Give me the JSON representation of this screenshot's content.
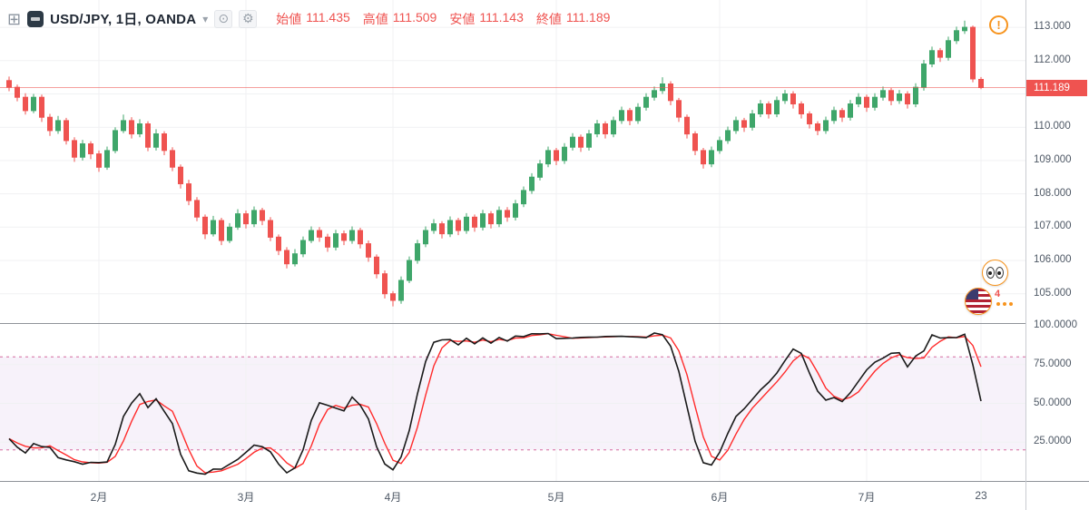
{
  "header": {
    "add_icon": "⊞",
    "symbol_title": "USD/JPY, 1日, OANDA",
    "caret": "▾",
    "eye_icon": "⊙",
    "gear_icon": "⚙",
    "ohlc_legend": [
      {
        "label": "始値",
        "value": "111.435"
      },
      {
        "label": "高値",
        "value": "111.509"
      },
      {
        "label": "安値",
        "value": "111.143"
      },
      {
        "label": "終値",
        "value": "111.189"
      }
    ],
    "alert_icon": "!"
  },
  "reactions": {
    "count": "4"
  },
  "colors": {
    "up": "#3fa66a",
    "down": "#ef5350",
    "red": "#ef5350",
    "k_line": "#1a1a1a",
    "d_line": "#ff2b2b",
    "band_line": "#d66a9e",
    "band_fill": "rgba(170,115,200,0.09)",
    "grid": "#f0f1f3",
    "alert_orange": "#f7941e"
  },
  "chart_data": {
    "type": "candlestick",
    "title": "USD/JPY, 1日, OANDA",
    "symbol": "USD/JPY",
    "interval": "1日",
    "exchange": "OANDA",
    "last_price": 111.189,
    "price_line": {
      "value": 111.189,
      "label": "111.189"
    },
    "ylim": [
      104.1,
      113.8
    ],
    "price_axis": [
      {
        "value": 113,
        "label": "113.000"
      },
      {
        "value": 112,
        "label": "112.000"
      },
      {
        "value": 111,
        "label": "111.000"
      },
      {
        "value": 110,
        "label": "110.000"
      },
      {
        "value": 109,
        "label": "109.000"
      },
      {
        "value": 108,
        "label": "108.000"
      },
      {
        "value": 107,
        "label": "107.000"
      },
      {
        "value": 106,
        "label": "106.000"
      },
      {
        "value": 105,
        "label": "105.000"
      }
    ],
    "time_axis": [
      {
        "index": 11,
        "label": "2月"
      },
      {
        "index": 29,
        "label": "3月"
      },
      {
        "index": 47,
        "label": "4月"
      },
      {
        "index": 67,
        "label": "5月"
      },
      {
        "index": 87,
        "label": "6月"
      },
      {
        "index": 105,
        "label": "7月"
      },
      {
        "index": 119,
        "label": "23"
      }
    ],
    "ohlc": [
      [
        111.4,
        111.52,
        111.08,
        111.2
      ],
      [
        111.2,
        111.28,
        110.78,
        110.9
      ],
      [
        110.9,
        111.02,
        110.38,
        110.5
      ],
      [
        110.5,
        111.0,
        110.42,
        110.9
      ],
      [
        110.9,
        110.98,
        110.16,
        110.3
      ],
      [
        110.3,
        110.4,
        109.74,
        109.9
      ],
      [
        109.9,
        110.34,
        109.8,
        110.2
      ],
      [
        110.2,
        110.28,
        109.48,
        109.6
      ],
      [
        109.6,
        109.7,
        108.96,
        109.1
      ],
      [
        109.1,
        109.62,
        109.0,
        109.5
      ],
      [
        109.5,
        109.58,
        109.04,
        109.2
      ],
      [
        109.2,
        109.3,
        108.66,
        108.8
      ],
      [
        108.8,
        109.42,
        108.72,
        109.3
      ],
      [
        109.3,
        110.0,
        109.22,
        109.9
      ],
      [
        109.9,
        110.38,
        109.82,
        110.2
      ],
      [
        110.2,
        110.3,
        109.66,
        109.8
      ],
      [
        109.8,
        110.24,
        109.7,
        110.1
      ],
      [
        110.1,
        110.18,
        109.28,
        109.4
      ],
      [
        109.4,
        109.94,
        109.3,
        109.8
      ],
      [
        109.8,
        109.88,
        109.16,
        109.3
      ],
      [
        109.3,
        109.4,
        108.68,
        108.8
      ],
      [
        108.8,
        108.88,
        108.16,
        108.3
      ],
      [
        108.3,
        108.42,
        107.66,
        107.8
      ],
      [
        107.8,
        107.9,
        107.18,
        107.3
      ],
      [
        107.3,
        107.38,
        106.64,
        106.8
      ],
      [
        106.8,
        107.34,
        106.72,
        107.2
      ],
      [
        107.2,
        107.28,
        106.46,
        106.6
      ],
      [
        106.6,
        107.12,
        106.52,
        107.0
      ],
      [
        107.0,
        107.54,
        106.92,
        107.4
      ],
      [
        107.4,
        107.5,
        106.96,
        107.1
      ],
      [
        107.1,
        107.62,
        107.0,
        107.5
      ],
      [
        107.5,
        107.58,
        107.06,
        107.2
      ],
      [
        107.2,
        107.3,
        106.58,
        106.7
      ],
      [
        106.7,
        106.78,
        106.16,
        106.3
      ],
      [
        106.3,
        106.4,
        105.76,
        105.9
      ],
      [
        105.9,
        106.34,
        105.82,
        106.2
      ],
      [
        106.2,
        106.72,
        106.1,
        106.6
      ],
      [
        106.6,
        107.02,
        106.52,
        106.9
      ],
      [
        106.9,
        107.0,
        106.56,
        106.7
      ],
      [
        106.7,
        106.8,
        106.26,
        106.4
      ],
      [
        106.4,
        106.92,
        106.3,
        106.8
      ],
      [
        106.8,
        106.9,
        106.46,
        106.6
      ],
      [
        106.6,
        107.02,
        106.5,
        106.9
      ],
      [
        106.9,
        106.98,
        106.36,
        106.5
      ],
      [
        106.5,
        106.6,
        105.96,
        106.1
      ],
      [
        106.1,
        106.18,
        105.46,
        105.6
      ],
      [
        105.6,
        105.7,
        104.86,
        105.0
      ],
      [
        105.0,
        105.08,
        104.62,
        104.8
      ],
      [
        104.8,
        105.52,
        104.7,
        105.4
      ],
      [
        105.4,
        106.12,
        105.32,
        106.0
      ],
      [
        106.0,
        106.62,
        105.9,
        106.5
      ],
      [
        106.5,
        107.02,
        106.4,
        106.9
      ],
      [
        106.9,
        107.24,
        106.8,
        107.1
      ],
      [
        107.1,
        107.18,
        106.66,
        106.8
      ],
      [
        106.8,
        107.32,
        106.7,
        107.2
      ],
      [
        107.2,
        107.28,
        106.76,
        106.9
      ],
      [
        106.9,
        107.42,
        106.8,
        107.3
      ],
      [
        107.3,
        107.38,
        106.86,
        107.0
      ],
      [
        107.0,
        107.52,
        106.9,
        107.4
      ],
      [
        107.4,
        107.48,
        106.96,
        107.1
      ],
      [
        107.1,
        107.62,
        107.0,
        107.5
      ],
      [
        107.5,
        107.6,
        107.16,
        107.3
      ],
      [
        107.3,
        107.82,
        107.2,
        107.7
      ],
      [
        107.7,
        108.22,
        107.6,
        108.1
      ],
      [
        108.1,
        108.62,
        108.0,
        108.5
      ],
      [
        108.5,
        109.02,
        108.4,
        108.9
      ],
      [
        108.9,
        109.42,
        108.8,
        109.3
      ],
      [
        109.3,
        109.38,
        108.86,
        109.0
      ],
      [
        109.0,
        109.52,
        108.9,
        109.4
      ],
      [
        109.4,
        109.82,
        109.3,
        109.7
      ],
      [
        109.7,
        109.78,
        109.26,
        109.4
      ],
      [
        109.4,
        109.92,
        109.3,
        109.8
      ],
      [
        109.8,
        110.22,
        109.7,
        110.1
      ],
      [
        110.1,
        110.18,
        109.66,
        109.8
      ],
      [
        109.8,
        110.32,
        109.7,
        110.2
      ],
      [
        110.2,
        110.62,
        110.1,
        110.5
      ],
      [
        110.5,
        110.58,
        110.06,
        110.2
      ],
      [
        110.2,
        110.72,
        110.1,
        110.6
      ],
      [
        110.6,
        111.02,
        110.5,
        110.9
      ],
      [
        110.9,
        111.22,
        110.8,
        111.1
      ],
      [
        111.1,
        111.5,
        111.0,
        111.3
      ],
      [
        111.3,
        111.38,
        110.66,
        110.8
      ],
      [
        110.8,
        110.88,
        110.16,
        110.3
      ],
      [
        110.3,
        110.38,
        109.66,
        109.8
      ],
      [
        109.8,
        109.88,
        109.16,
        109.3
      ],
      [
        109.3,
        109.38,
        108.76,
        108.9
      ],
      [
        108.9,
        109.42,
        108.8,
        109.3
      ],
      [
        109.3,
        109.72,
        109.2,
        109.6
      ],
      [
        109.6,
        110.02,
        109.5,
        109.9
      ],
      [
        109.9,
        110.32,
        109.8,
        110.2
      ],
      [
        110.2,
        110.28,
        109.86,
        110.0
      ],
      [
        110.0,
        110.52,
        109.9,
        110.4
      ],
      [
        110.4,
        110.82,
        110.3,
        110.7
      ],
      [
        110.7,
        110.78,
        110.26,
        110.4
      ],
      [
        110.4,
        110.92,
        110.3,
        110.8
      ],
      [
        110.8,
        111.12,
        110.7,
        111.0
      ],
      [
        111.0,
        111.08,
        110.56,
        110.7
      ],
      [
        110.7,
        110.78,
        110.26,
        110.4
      ],
      [
        110.4,
        110.48,
        109.96,
        110.1
      ],
      [
        110.1,
        110.18,
        109.76,
        109.9
      ],
      [
        109.9,
        110.32,
        109.8,
        110.2
      ],
      [
        110.2,
        110.62,
        110.1,
        110.5
      ],
      [
        110.5,
        110.58,
        110.16,
        110.3
      ],
      [
        110.3,
        110.82,
        110.2,
        110.7
      ],
      [
        110.7,
        111.02,
        110.6,
        110.9
      ],
      [
        110.9,
        110.98,
        110.46,
        110.6
      ],
      [
        110.6,
        111.02,
        110.5,
        110.9
      ],
      [
        110.9,
        111.22,
        110.8,
        111.1
      ],
      [
        111.1,
        111.18,
        110.66,
        110.8
      ],
      [
        110.8,
        111.12,
        110.7,
        111.0
      ],
      [
        111.0,
        111.08,
        110.56,
        110.7
      ],
      [
        110.7,
        111.32,
        110.6,
        111.2
      ],
      [
        111.2,
        112.02,
        111.1,
        111.9
      ],
      [
        111.9,
        112.42,
        111.8,
        112.3
      ],
      [
        112.3,
        112.38,
        111.96,
        112.1
      ],
      [
        112.1,
        112.72,
        112.0,
        112.6
      ],
      [
        112.6,
        113.02,
        112.5,
        112.9
      ],
      [
        112.9,
        113.2,
        112.8,
        113.0
      ],
      [
        113.0,
        113.05,
        111.35,
        111.45
      ],
      [
        111.435,
        111.509,
        111.143,
        111.189
      ]
    ],
    "indicator": {
      "name": "stochastic",
      "k_period": 14,
      "k_smooth": 3,
      "d_smooth": 3,
      "bands": [
        80,
        20
      ],
      "axis_ticks": [
        {
          "value": 100,
          "label": "100.0000"
        },
        {
          "value": 75,
          "label": "75.0000"
        },
        {
          "value": 50,
          "label": "50.0000"
        },
        {
          "value": 25,
          "label": "25.0000"
        }
      ]
    }
  }
}
